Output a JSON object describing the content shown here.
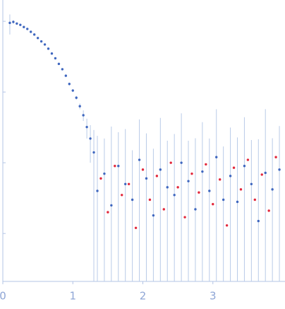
{
  "chart_data": {
    "type": "scatter",
    "xlim": [
      0,
      4.03
    ],
    "xticks": [
      0,
      1,
      2,
      3
    ],
    "ylim": [
      0.00021,
      2.0
    ],
    "yticks": [
      1,
      0.1,
      0.01,
      0.001
    ],
    "log_y": true,
    "error_color": "#b9cbe8",
    "series": [
      {
        "color": "#3f67bf",
        "x": [
          0.1,
          0.15,
          0.2,
          0.25,
          0.3,
          0.35,
          0.4,
          0.45,
          0.5,
          0.55,
          0.6,
          0.65,
          0.7,
          0.75,
          0.8,
          0.85,
          0.9,
          0.95,
          1.0,
          1.05,
          1.1,
          1.15,
          1.2,
          1.25,
          1.3,
          1.35,
          1.45,
          1.55,
          1.65,
          1.75,
          1.85,
          1.95,
          2.05,
          2.15,
          2.25,
          2.35,
          2.45,
          2.55,
          2.65,
          2.75,
          2.85,
          2.95,
          3.05,
          3.15,
          3.25,
          3.35,
          3.45,
          3.55,
          3.65,
          3.75,
          3.85,
          3.95
        ],
        "values": [
          0.95,
          0.98,
          0.93,
          0.89,
          0.83,
          0.78,
          0.71,
          0.65,
          0.58,
          0.52,
          0.47,
          0.41,
          0.35,
          0.3,
          0.25,
          0.21,
          0.17,
          0.13,
          0.105,
          0.083,
          0.063,
          0.047,
          0.032,
          0.022,
          0.014,
          0.004,
          0.007,
          0.0025,
          0.009,
          0.005,
          0.003,
          0.011,
          0.006,
          0.0018,
          0.008,
          0.0045,
          0.0035,
          0.01,
          0.0055,
          0.0022,
          0.0075,
          0.004,
          0.012,
          0.003,
          0.0065,
          0.0028,
          0.009,
          0.005,
          0.0015,
          0.0072,
          0.0042,
          0.008
        ],
        "errors": [
          0.3,
          0.05,
          0.03,
          0.02,
          0.02,
          0.02,
          0.015,
          0.015,
          0.012,
          0.012,
          0.01,
          0.01,
          0.01,
          0.008,
          0.008,
          0.007,
          0.006,
          0.006,
          0.005,
          0.005,
          0.006,
          0.008,
          0.01,
          0.012,
          0.015,
          0.02,
          0.015,
          0.03,
          0.018,
          0.025,
          0.012,
          0.03,
          0.02,
          0.014,
          0.035,
          0.016,
          0.022,
          0.04,
          0.015,
          0.02,
          0.03,
          0.018,
          0.045,
          0.014,
          0.025,
          0.02,
          0.035,
          0.016,
          0.02,
          0.05,
          0.018,
          0.025
        ]
      },
      {
        "color": "#e2283c",
        "x": [
          1.4,
          1.5,
          1.6,
          1.7,
          1.8,
          1.9,
          2.0,
          2.1,
          2.2,
          2.3,
          2.4,
          2.5,
          2.6,
          2.7,
          2.8,
          2.9,
          3.0,
          3.1,
          3.2,
          3.3,
          3.4,
          3.5,
          3.6,
          3.7,
          3.8,
          3.9
        ],
        "values": [
          0.006,
          0.002,
          0.009,
          0.0035,
          0.005,
          0.0012,
          0.008,
          0.003,
          0.0065,
          0.0022,
          0.01,
          0.0045,
          0.0017,
          0.007,
          0.0038,
          0.0095,
          0.0026,
          0.0058,
          0.0013,
          0.0085,
          0.0042,
          0.011,
          0.003,
          0.0068,
          0.0021,
          0.012
        ]
      }
    ]
  }
}
